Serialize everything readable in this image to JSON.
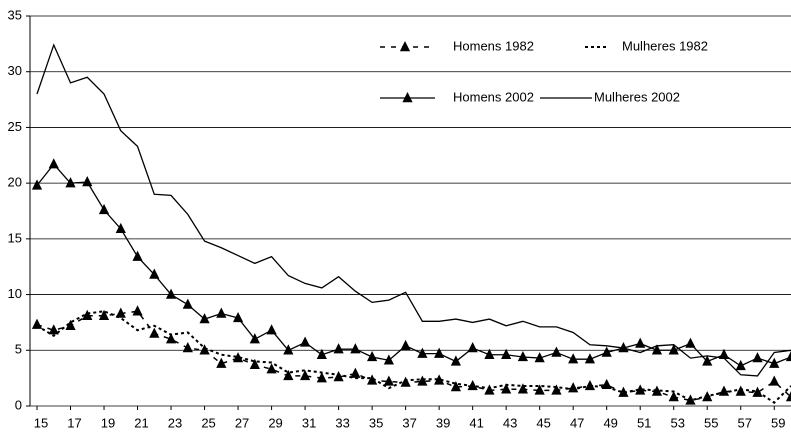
{
  "chart_data": {
    "type": "line",
    "x": [
      15,
      16,
      17,
      18,
      19,
      20,
      21,
      22,
      23,
      24,
      25,
      26,
      27,
      28,
      29,
      30,
      31,
      32,
      33,
      34,
      35,
      36,
      37,
      38,
      39,
      40,
      41,
      42,
      43,
      44,
      45,
      46,
      47,
      48,
      49,
      50,
      51,
      52,
      53,
      54,
      55,
      56,
      57,
      58,
      59,
      60
    ],
    "xlim": [
      15,
      60
    ],
    "xticks": [
      15,
      17,
      19,
      21,
      23,
      25,
      27,
      29,
      31,
      33,
      35,
      37,
      39,
      41,
      43,
      45,
      47,
      49,
      51,
      53,
      55,
      57,
      59
    ],
    "ylim": [
      0,
      35
    ],
    "yticks": [
      0,
      5,
      10,
      15,
      20,
      25,
      30,
      35
    ],
    "grid": true,
    "series": [
      {
        "name": "Homens 1982",
        "color": "#000000",
        "line_style": "dashed",
        "marker": "triangle",
        "values": [
          7.3,
          6.8,
          7.2,
          8.1,
          8.1,
          8.3,
          8.5,
          6.5,
          6,
          5.2,
          5,
          3.8,
          4.3,
          3.7,
          3.3,
          2.7,
          2.7,
          2.5,
          2.6,
          2.9,
          2.3,
          2.2,
          2.1,
          2.2,
          2.3,
          1.7,
          1.8,
          1.4,
          1.5,
          1.5,
          1.4,
          1.4,
          1.6,
          1.8,
          1.9,
          1.2,
          1.4,
          1.3,
          0.8,
          0.5,
          0.8,
          1.3,
          1.3,
          1.2,
          2.2,
          0.8
        ]
      },
      {
        "name": "Mulheres 1982",
        "color": "#000000",
        "line_style": "dotted",
        "marker": "none",
        "values": [
          7.2,
          6.3,
          7.5,
          8.3,
          8.5,
          7.9,
          6.8,
          7.2,
          6.4,
          6.6,
          5.2,
          4.6,
          4.4,
          4,
          3.9,
          3,
          3.2,
          3,
          2.8,
          2.5,
          2.5,
          1.6,
          2.3,
          2.4,
          2.4,
          2,
          1.8,
          1.6,
          1.9,
          1.8,
          1.8,
          1.7,
          1.5,
          1.8,
          1.7,
          1.2,
          1.5,
          1.4,
          1.3,
          0.5,
          0.9,
          1.2,
          1.5,
          1.3,
          0.3,
          1.8
        ]
      },
      {
        "name": "Homens 2002",
        "color": "#000000",
        "line_style": "solid",
        "marker": "triangle",
        "values": [
          19.8,
          21.7,
          20,
          20.1,
          17.6,
          15.9,
          13.4,
          11.8,
          10,
          9.1,
          7.8,
          8.3,
          7.9,
          6,
          6.8,
          5,
          5.7,
          4.6,
          5.1,
          5.1,
          4.4,
          4.1,
          5.4,
          4.7,
          4.7,
          4,
          5.2,
          4.6,
          4.6,
          4.4,
          4.3,
          4.8,
          4.2,
          4.2,
          4.8,
          5.2,
          5.6,
          5,
          5,
          5.6,
          4,
          4.6,
          3.6,
          4.3,
          3.8,
          4.4
        ]
      },
      {
        "name": "Mulheres 2002",
        "color": "#000000",
        "line_style": "solid",
        "marker": "none",
        "values": [
          28,
          32.4,
          29,
          29.5,
          28,
          24.7,
          23.3,
          19,
          18.9,
          17.2,
          14.8,
          14.2,
          13.5,
          12.8,
          13.4,
          11.7,
          11,
          10.6,
          11.6,
          10.3,
          9.3,
          9.5,
          10.2,
          7.6,
          7.6,
          7.8,
          7.5,
          7.8,
          7.2,
          7.6,
          7.1,
          7.1,
          6.6,
          5.5,
          5.4,
          5.2,
          4.8,
          5.4,
          5.5,
          4.3,
          4.5,
          4.3,
          2.8,
          2.7,
          4.8,
          5
        ]
      }
    ]
  }
}
